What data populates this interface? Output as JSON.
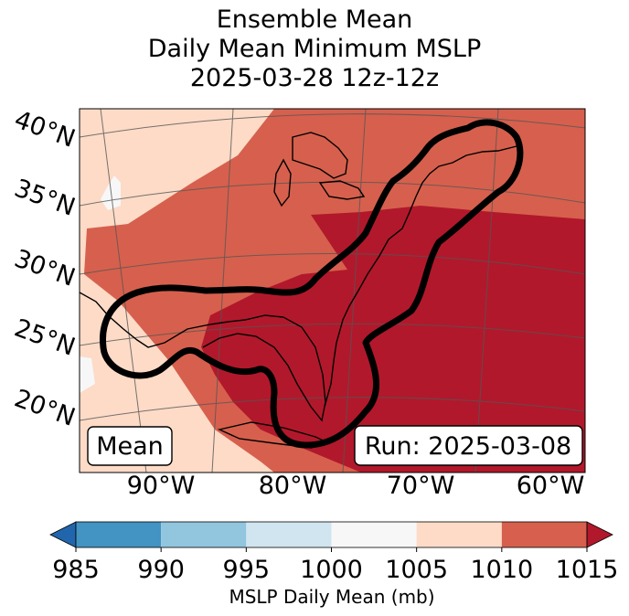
{
  "chart_data": {
    "type": "heatmap",
    "title": [
      "Ensemble Mean",
      "Daily Mean Minimum MSLP",
      "2025-03-28 12z-12z"
    ],
    "variable": "MSLP Daily Mean (mb)",
    "lat_labels": [
      "40°N",
      "35°N",
      "30°N",
      "25°N",
      "20°N"
    ],
    "lon_labels": [
      "90°W",
      "80°W",
      "70°W",
      "60°W"
    ],
    "colorbar": {
      "label": "MSLP Daily Mean (mb)",
      "ticks": [
        "985",
        "990",
        "995",
        "1000",
        "1005",
        "1010",
        "1015"
      ],
      "bins": [
        {
          "range": [
            980,
            985
          ],
          "color": "#2166ac"
        },
        {
          "range": [
            985,
            990
          ],
          "color": "#4393c3"
        },
        {
          "range": [
            990,
            995
          ],
          "color": "#92c5de"
        },
        {
          "range": [
            995,
            1000
          ],
          "color": "#d1e5f0"
        },
        {
          "range": [
            1000,
            1005
          ],
          "color": "#f7f7f7"
        },
        {
          "range": [
            1005,
            1010
          ],
          "color": "#fddbc7"
        },
        {
          "range": [
            1010,
            1015
          ],
          "color": "#d6604d"
        },
        {
          "range": [
            1015,
            1020
          ],
          "color": "#b2182b"
        }
      ],
      "extend": "both"
    },
    "regions": [
      {
        "name": "background",
        "range_mb": [
          1005,
          1010
        ],
        "color": "#fddbc7"
      },
      {
        "name": "eastern-us-band",
        "range_mb": [
          1010,
          1015
        ],
        "color": "#d6604d"
      },
      {
        "name": "southeast-atlantic-high",
        "range_mb": [
          1015,
          1020
        ],
        "color": "#b2182b"
      },
      {
        "name": "western-gulf-patch",
        "range_mb": [
          1000,
          1005
        ],
        "color": "#f7f7f7"
      }
    ],
    "contour": {
      "description": "thick black outline",
      "color": "#000000"
    }
  },
  "annotations": {
    "mean_label": "Mean",
    "run_label": "Run: 2025-03-08"
  }
}
